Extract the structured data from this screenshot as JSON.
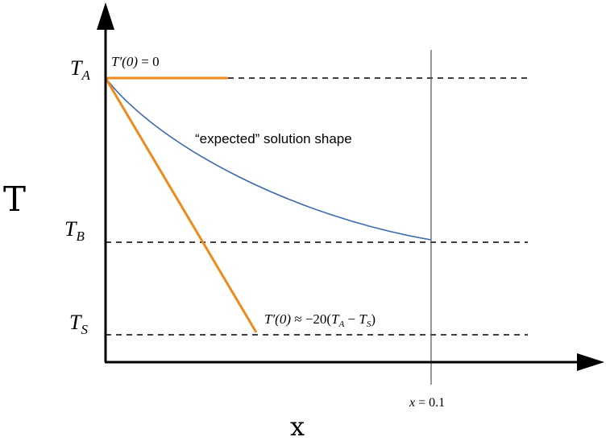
{
  "axes": {
    "y_label": "T",
    "x_label": "x"
  },
  "levels": {
    "ta": {
      "symbol": "T",
      "sub": "A"
    },
    "tb": {
      "symbol": "T",
      "sub": "B"
    },
    "ts": {
      "symbol": "T",
      "sub": "S"
    }
  },
  "annotations": {
    "curve_label": "“expected” solution shape",
    "flat_slope": {
      "lhs": "T′(0)",
      "rest": " = 0"
    },
    "steep_slope": {
      "lhs": "T′(0)",
      "approx": " ≈ −20(",
      "ta": "T",
      "ta_sub": "A",
      "minus": " − ",
      "ts": "T",
      "ts_sub": "S",
      "close": ")"
    },
    "x_marker": {
      "var": "x",
      "rest": " = 0.1"
    }
  },
  "colors": {
    "axis": "#000000",
    "curve": "#3d6aad",
    "tangent": "#f08a1c",
    "guide": "#000000",
    "marker_line": "#555555"
  }
}
